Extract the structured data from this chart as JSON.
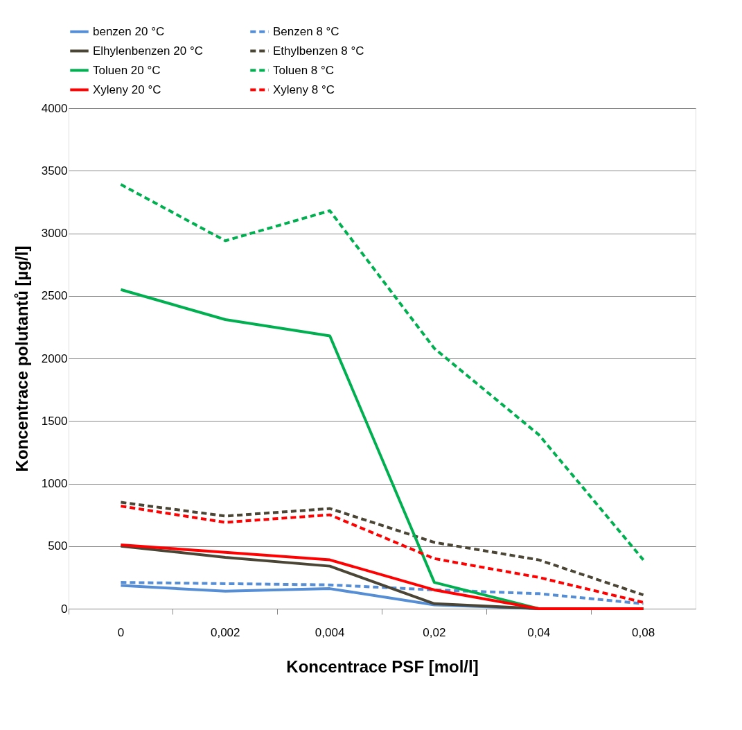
{
  "chart_data": {
    "type": "line",
    "xlabel": "Koncentrace PSF [mol/l]",
    "ylabel": "Koncentrace polutantů [µg/l]",
    "categories": [
      "0",
      "0,002",
      "0,004",
      "0,02",
      "0,04",
      "0,08"
    ],
    "ylim": [
      0,
      4000
    ],
    "yticks": [
      0,
      500,
      1000,
      1500,
      2000,
      2500,
      3000,
      3500,
      4000
    ],
    "grid": "y",
    "legend": "top",
    "marker": "none",
    "series": [
      {
        "name": "benzen 20 °C",
        "color": "#558ed5",
        "line_style": "solid",
        "values": [
          185,
          140,
          160,
          30,
          0,
          0
        ]
      },
      {
        "name": "Benzen 8 °C",
        "color": "#558ed5",
        "line_style": "dashed",
        "values": [
          210,
          200,
          190,
          150,
          120,
          40
        ]
      },
      {
        "name": "Elhylenbenzen 20 °C",
        "color": "#4a4535",
        "line_style": "solid",
        "values": [
          500,
          410,
          340,
          40,
          0,
          0
        ]
      },
      {
        "name": "Ethylbenzen 8 °C",
        "color": "#4a4535",
        "line_style": "dashed",
        "values": [
          850,
          740,
          800,
          530,
          390,
          110
        ]
      },
      {
        "name": "Toluen 20 °C",
        "color": "#00b050",
        "line_style": "solid",
        "values": [
          2550,
          2310,
          2180,
          210,
          0,
          0
        ]
      },
      {
        "name": "Toluen 8 °C",
        "color": "#00b050",
        "line_style": "dashed",
        "values": [
          3390,
          2940,
          3180,
          2080,
          1390,
          390
        ]
      },
      {
        "name": "Xyleny 20 °C",
        "color": "#ff0000",
        "line_style": "solid",
        "values": [
          510,
          450,
          390,
          150,
          0,
          0
        ]
      },
      {
        "name": "Xyleny 8 °C",
        "color": "#ff0000",
        "line_style": "dashed",
        "values": [
          820,
          690,
          750,
          400,
          250,
          50
        ]
      }
    ]
  }
}
